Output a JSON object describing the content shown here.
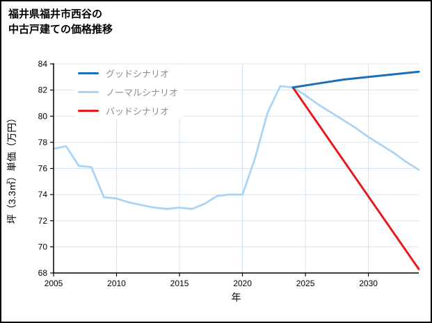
{
  "title": {
    "line1": "福井県福井市西谷の",
    "line2": "中古戸建ての価格推移"
  },
  "chart_data": {
    "type": "line",
    "title": "福井県福井市西谷の中古戸建ての価格推移",
    "xlabel": "年",
    "ylabel": "坪（3.3㎡）単価（万円）",
    "xlim": [
      2005,
      2034
    ],
    "ylim": [
      68,
      84
    ],
    "xticks": [
      2005,
      2010,
      2015,
      2020,
      2025,
      2030
    ],
    "yticks": [
      68,
      70,
      72,
      74,
      76,
      78,
      80,
      82,
      84
    ],
    "grid": true,
    "grid_color": "#d3e3f3",
    "axis_color": "#000000",
    "legend_position": "upper-left",
    "series": [
      {
        "name": "グッドシナリオ",
        "color": "#1a6fb8",
        "width": 3,
        "x": [
          2024,
          2026,
          2028,
          2030,
          2032,
          2034
        ],
        "y": [
          82.2,
          82.5,
          82.8,
          83.0,
          83.2,
          83.4
        ]
      },
      {
        "name": "ノーマルシナリオ",
        "color": "#aad4f5",
        "width": 2.8,
        "x": [
          2005,
          2006,
          2007,
          2008,
          2009,
          2010,
          2011,
          2012,
          2013,
          2014,
          2015,
          2016,
          2017,
          2018,
          2019,
          2020,
          2021,
          2022,
          2023,
          2024,
          2025,
          2026,
          2027,
          2028,
          2029,
          2030,
          2031,
          2032,
          2033,
          2034
        ],
        "y": [
          77.5,
          77.7,
          76.2,
          76.1,
          73.8,
          73.7,
          73.4,
          73.2,
          73.0,
          72.9,
          73.0,
          72.9,
          73.3,
          73.9,
          74.0,
          74.0,
          76.8,
          80.3,
          82.3,
          82.2,
          81.6,
          80.9,
          80.3,
          79.7,
          79.1,
          78.4,
          77.8,
          77.2,
          76.5,
          75.9
        ]
      },
      {
        "name": "バッドシナリオ",
        "color": "#e8191d",
        "width": 3,
        "x": [
          2024,
          2034
        ],
        "y": [
          82.2,
          68.3
        ]
      }
    ]
  }
}
